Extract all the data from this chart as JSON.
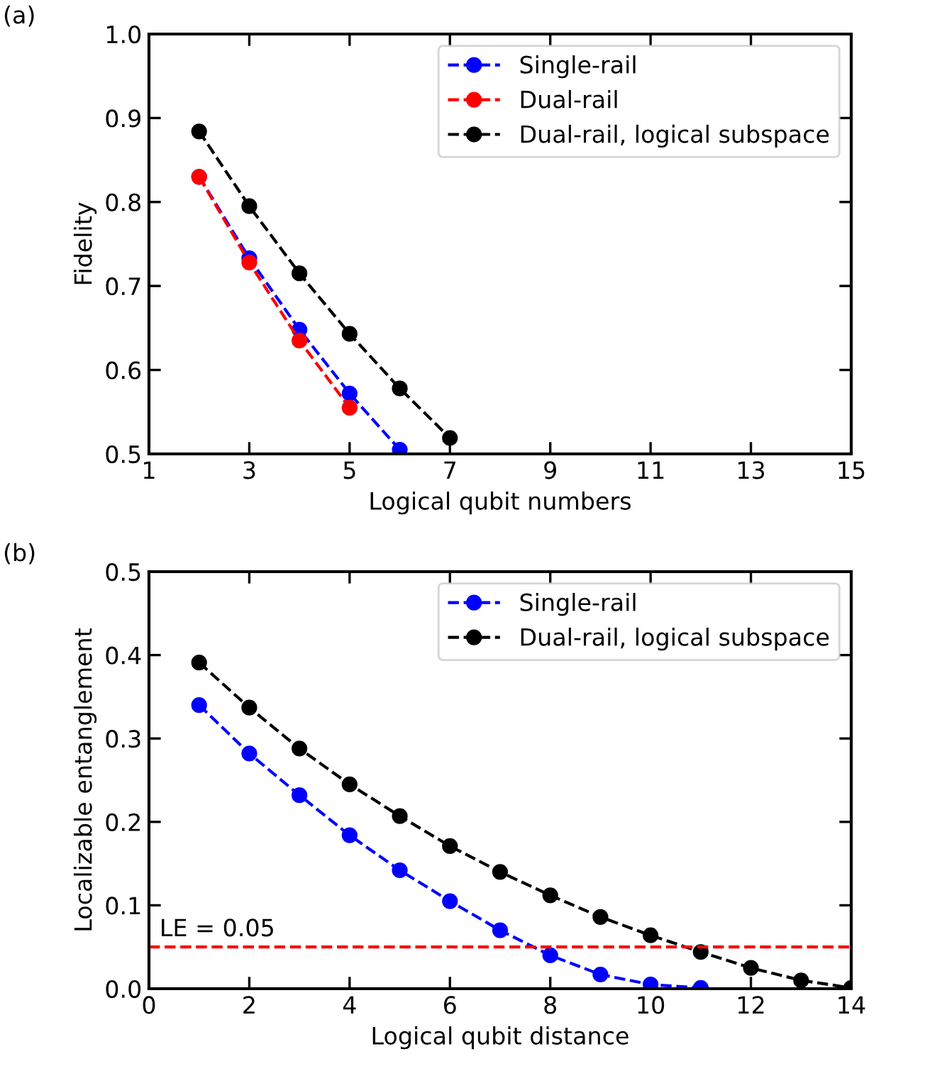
{
  "chart_data": [
    {
      "type": "line",
      "xlabel": "Logical qubit numbers",
      "ylabel": "Fidelity",
      "annotations": [
        "(a)"
      ],
      "xlim": [
        1,
        15
      ],
      "ylim": [
        0.5,
        1.0
      ],
      "xticks": [
        1,
        3,
        5,
        7,
        9,
        11,
        13,
        15
      ],
      "yticks": [
        0.5,
        0.6,
        0.7,
        0.8,
        0.9,
        {
          "value": 1,
          "label": "1.0"
        }
      ],
      "grid": false,
      "legend": "top right",
      "marker": "circle",
      "line_style": "dashed",
      "series": [
        {
          "name": "Single-rail",
          "color": "#0000ff",
          "x": [
            2,
            3,
            4,
            5,
            6
          ],
          "values": [
            0.83,
            0.733,
            0.648,
            0.572,
            0.505
          ]
        },
        {
          "name": "Dual-rail",
          "color": "#ff0000",
          "x": [
            2,
            3,
            4,
            5
          ],
          "values": [
            0.83,
            0.728,
            0.635,
            0.555
          ]
        },
        {
          "name": "Dual-rail, logical subspace",
          "color": "#000000",
          "x": [
            2,
            3,
            4,
            5,
            6,
            7
          ],
          "values": [
            0.884,
            0.795,
            0.715,
            0.643,
            0.578,
            0.519
          ]
        }
      ]
    },
    {
      "type": "line",
      "xlabel": "Logical qubit distance",
      "ylabel": "Localizable entanglement",
      "annotations": [
        "(b)"
      ],
      "xlim": [
        0,
        14
      ],
      "ylim": [
        0,
        0.5
      ],
      "xticks": [
        0,
        2,
        4,
        6,
        8,
        10,
        12,
        14
      ],
      "yticks": [
        {
          "value": 0,
          "label": "0.0"
        },
        0.1,
        0.2,
        0.3,
        0.4,
        0.5
      ],
      "grid": false,
      "legend": "top right",
      "marker": "circle",
      "line_style": "dashed",
      "ref_lines": [
        {
          "axis": "y",
          "value": 0.05,
          "label": "LE = 0.05",
          "color": "#ff0000",
          "line_style": "dashed"
        }
      ],
      "series": [
        {
          "name": "Single-rail",
          "color": "#0000ff",
          "x": [
            1,
            2,
            3,
            4,
            5,
            6,
            7,
            8,
            9,
            10,
            11
          ],
          "values": [
            0.34,
            0.282,
            0.232,
            0.184,
            0.142,
            0.105,
            0.07,
            0.04,
            0.017,
            0.005,
            0.001
          ]
        },
        {
          "name": "Dual-rail, logical subspace",
          "color": "#000000",
          "x": [
            1,
            2,
            3,
            4,
            5,
            6,
            7,
            8,
            9,
            10,
            11,
            12,
            13,
            14
          ],
          "values": [
            0.391,
            0.337,
            0.288,
            0.245,
            0.207,
            0.171,
            0.14,
            0.112,
            0.086,
            0.064,
            0.044,
            0.025,
            0.01,
            0.001
          ]
        }
      ]
    }
  ]
}
